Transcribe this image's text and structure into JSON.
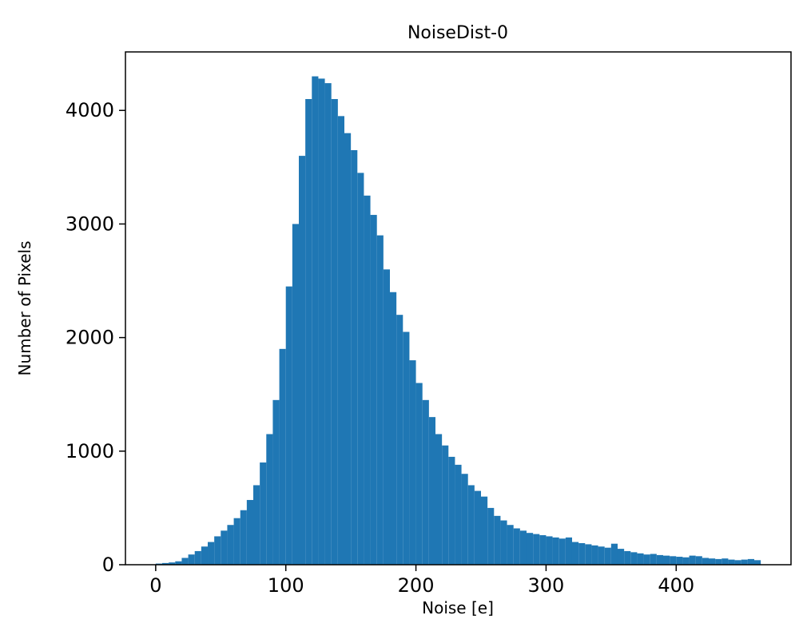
{
  "figure": {
    "title": "NoiseDist-0",
    "xlabel": "Noise [e]",
    "ylabel": "Number of Pixels"
  },
  "chart_data": {
    "type": "bar",
    "subtype": "histogram",
    "title": "NoiseDist-0",
    "xlabel": "Noise [e]",
    "ylabel": "Number of Pixels",
    "bar_color": "#1f77b4",
    "background_color": "#ffffff",
    "grid": false,
    "legend": false,
    "bin_start": 0,
    "bin_width": 5,
    "xlim": [
      -23.25,
      488.25
    ],
    "ylim": [
      0,
      4515
    ],
    "xticks": [
      0,
      100,
      200,
      300,
      400
    ],
    "yticks": [
      0,
      1000,
      2000,
      3000,
      4000
    ],
    "counts": [
      10,
      15,
      20,
      30,
      60,
      90,
      120,
      160,
      200,
      250,
      300,
      350,
      410,
      480,
      570,
      700,
      900,
      1150,
      1450,
      1900,
      2450,
      3000,
      3600,
      4100,
      4300,
      4280,
      4240,
      4100,
      3950,
      3800,
      3650,
      3450,
      3250,
      3080,
      2900,
      2600,
      2400,
      2200,
      2050,
      1800,
      1600,
      1450,
      1300,
      1150,
      1050,
      950,
      880,
      800,
      700,
      650,
      600,
      500,
      430,
      390,
      350,
      320,
      300,
      280,
      270,
      260,
      250,
      240,
      230,
      240,
      200,
      190,
      180,
      170,
      160,
      150,
      185,
      140,
      120,
      110,
      100,
      90,
      95,
      85,
      80,
      75,
      70,
      65,
      80,
      75,
      60,
      55,
      50,
      55,
      45,
      40,
      45,
      50,
      40
    ]
  }
}
